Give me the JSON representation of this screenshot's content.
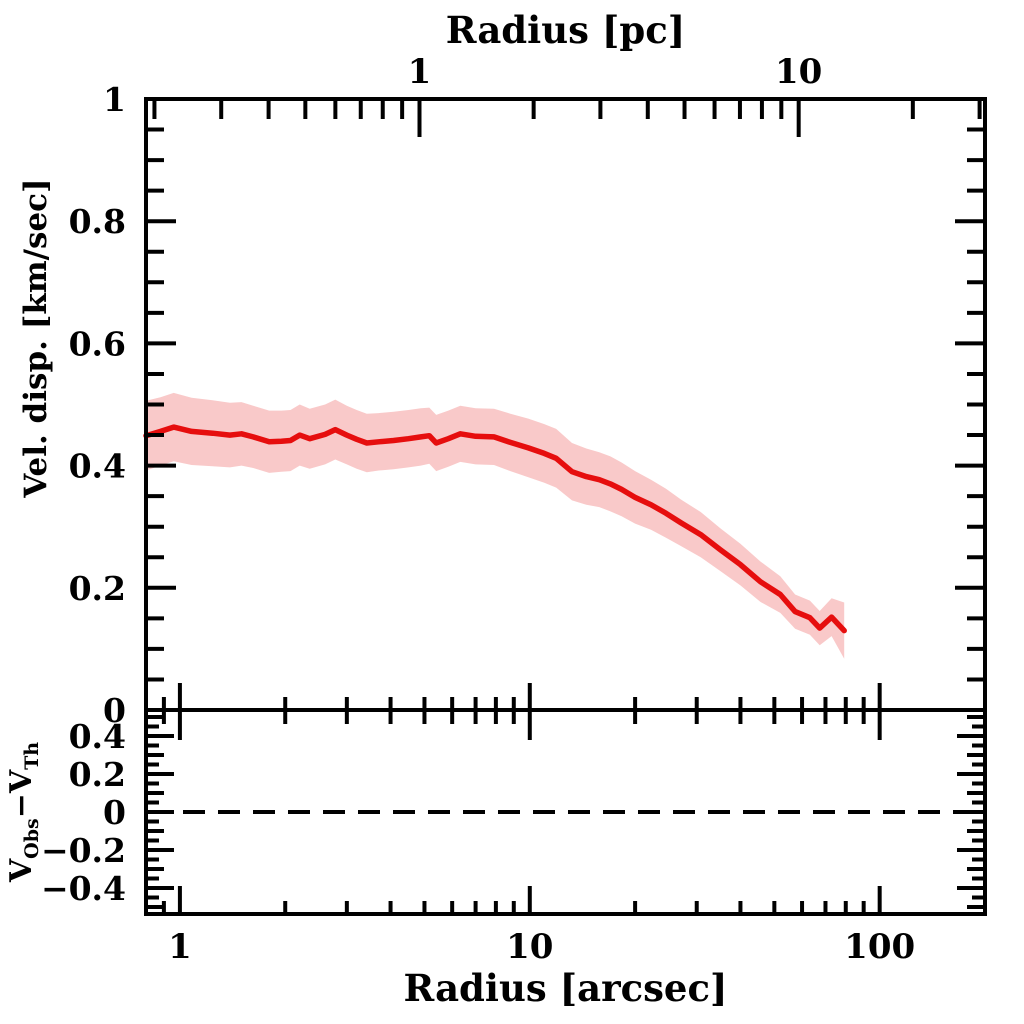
{
  "chart_data": {
    "type": "line",
    "description": "Velocity dispersion radial profile with shaded uncertainty band and residual sub-panel",
    "top_axis": {
      "title": "Radius [pc]",
      "scale": "log",
      "range_pc": [
        0.19,
        31
      ],
      "major_ticks": [
        {
          "value": 1,
          "label": "1"
        },
        {
          "value": 10,
          "label": "10"
        }
      ],
      "minor_ticks": [
        0.2,
        0.3,
        0.4,
        0.5,
        0.6,
        0.7,
        0.8,
        0.9,
        2,
        3,
        4,
        5,
        6,
        7,
        8,
        9,
        20,
        30
      ]
    },
    "bottom_axis": {
      "title": "Radius [arcsec]",
      "scale": "log",
      "range_arcsec": [
        0.8,
        200
      ],
      "major_ticks": [
        {
          "value": 1,
          "label": "1"
        },
        {
          "value": 10,
          "label": "10"
        },
        {
          "value": 100,
          "label": "100"
        }
      ],
      "minor_ticks": [
        0.9,
        2,
        3,
        4,
        5,
        6,
        7,
        8,
        9,
        20,
        30,
        40,
        50,
        60,
        70,
        80,
        90,
        200
      ]
    },
    "main_panel": {
      "ylabel": "Vel. disp. [km/sec]",
      "ylim": [
        0,
        1
      ],
      "ytick_minor_step": 0.05,
      "ytick_labels": [
        {
          "value": 0,
          "label": "0"
        },
        {
          "value": 0.2,
          "label": "0.2"
        },
        {
          "value": 0.4,
          "label": "0.4"
        },
        {
          "value": 0.6,
          "label": "0.6"
        },
        {
          "value": 0.8,
          "label": "0.8"
        },
        {
          "value": 1,
          "label": "1"
        }
      ],
      "grid": false,
      "legend": "none",
      "series": [
        {
          "name": "velocity dispersion profile",
          "style": "solid line with shaded 1-sigma band",
          "color": "#e60e0e",
          "band_color": "#f9c9c9",
          "points_r_v_err": [
            [
              0.8,
              0.449,
              0.057
            ],
            [
              0.88,
              0.456,
              0.056
            ],
            [
              0.96,
              0.463,
              0.056
            ],
            [
              1.08,
              0.456,
              0.055
            ],
            [
              1.24,
              0.453,
              0.054
            ],
            [
              1.39,
              0.45,
              0.053
            ],
            [
              1.5,
              0.452,
              0.052
            ],
            [
              1.62,
              0.447,
              0.051
            ],
            [
              1.8,
              0.439,
              0.051
            ],
            [
              1.95,
              0.44,
              0.05
            ],
            [
              2.07,
              0.441,
              0.05
            ],
            [
              2.2,
              0.45,
              0.05
            ],
            [
              2.35,
              0.444,
              0.049
            ],
            [
              2.6,
              0.451,
              0.049
            ],
            [
              2.78,
              0.459,
              0.049
            ],
            [
              3.0,
              0.45,
              0.048
            ],
            [
              3.2,
              0.443,
              0.048
            ],
            [
              3.42,
              0.437,
              0.048
            ],
            [
              3.7,
              0.439,
              0.047
            ],
            [
              4.08,
              0.441,
              0.047
            ],
            [
              4.5,
              0.444,
              0.047
            ],
            [
              4.88,
              0.447,
              0.047
            ],
            [
              5.16,
              0.449,
              0.046
            ],
            [
              5.4,
              0.437,
              0.046
            ],
            [
              5.85,
              0.444,
              0.046
            ],
            [
              6.33,
              0.452,
              0.046
            ],
            [
              7.0,
              0.448,
              0.046
            ],
            [
              7.9,
              0.447,
              0.046
            ],
            [
              8.8,
              0.438,
              0.047
            ],
            [
              9.9,
              0.429,
              0.048
            ],
            [
              11.0,
              0.42,
              0.048
            ],
            [
              11.9,
              0.412,
              0.048
            ],
            [
              13.2,
              0.39,
              0.047
            ],
            [
              14.5,
              0.382,
              0.046
            ],
            [
              15.8,
              0.377,
              0.045
            ],
            [
              17.0,
              0.37,
              0.045
            ],
            [
              18.3,
              0.361,
              0.044
            ],
            [
              20.0,
              0.348,
              0.043
            ],
            [
              22.2,
              0.336,
              0.041
            ],
            [
              24.5,
              0.322,
              0.04
            ],
            [
              27.1,
              0.306,
              0.038
            ],
            [
              30.8,
              0.287,
              0.037
            ],
            [
              35.1,
              0.262,
              0.035
            ],
            [
              40.0,
              0.238,
              0.034
            ],
            [
              45.6,
              0.21,
              0.033
            ],
            [
              52.0,
              0.189,
              0.03
            ],
            [
              57.3,
              0.161,
              0.028
            ],
            [
              63.2,
              0.151,
              0.028
            ],
            [
              67.4,
              0.134,
              0.028
            ],
            [
              72.9,
              0.152,
              0.031
            ],
            [
              79.2,
              0.13,
              0.046
            ]
          ]
        }
      ]
    },
    "residual_panel": {
      "ylabel_plain": "V_Obs−V_Th",
      "ylabel_parts": [
        {
          "text": "V"
        },
        {
          "text": "Obs",
          "sub": true
        },
        {
          "text": "−V"
        },
        {
          "text": "Th",
          "sub": true
        }
      ],
      "ylim": [
        -0.54,
        0.54
      ],
      "ytick_minor_step": 0.05,
      "ytick_labels": [
        {
          "value": 0.4,
          "label": "0.4"
        },
        {
          "value": 0.2,
          "label": "0.2"
        },
        {
          "value": 0,
          "label": "0"
        },
        {
          "value": -0.2,
          "label": "−0.2"
        },
        {
          "value": -0.4,
          "label": "−0.4"
        }
      ],
      "zero_line": {
        "value": 0,
        "style": "dashed",
        "color": "#000000"
      },
      "series": []
    },
    "colors": {
      "line": "#e60e0e",
      "band": "#f9c9c9",
      "axis": "#000000",
      "background": "#ffffff"
    }
  }
}
